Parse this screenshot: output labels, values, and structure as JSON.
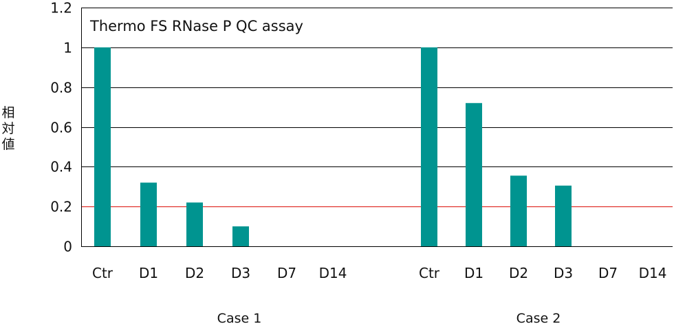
{
  "chart_data": {
    "type": "bar",
    "title": "Thermo FS RNase P QC assay",
    "ylabel": "相対値",
    "ylim": [
      0,
      1.2
    ],
    "yticks": [
      "0",
      "0.2",
      "0.4",
      "0.6",
      "0.8",
      "1",
      "1.2"
    ],
    "reference_line": {
      "value": 0.2,
      "color": "#e0312c"
    },
    "bar_color": "#009490",
    "grid": true,
    "groups": [
      {
        "name": "Case 1",
        "categories": [
          "Ctr",
          "D1",
          "D2",
          "D3",
          "D7",
          "D14"
        ],
        "values": [
          1.0,
          0.32,
          0.22,
          0.1,
          0,
          0
        ]
      },
      {
        "name": "Case 2",
        "categories": [
          "Ctr",
          "D1",
          "D2",
          "D3",
          "D7",
          "D14"
        ],
        "values": [
          1.0,
          0.72,
          0.355,
          0.305,
          0,
          0
        ]
      }
    ]
  }
}
